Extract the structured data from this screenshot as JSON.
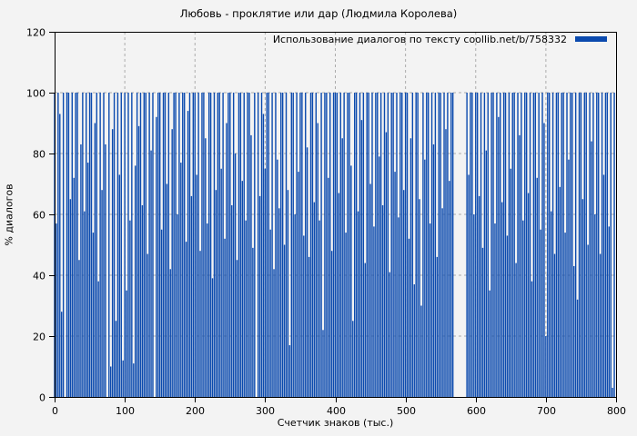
{
  "figure": {
    "background": "#f3f3f3"
  },
  "chart_data": {
    "type": "bar",
    "title": "Любовь - проклятие или дар (Людмила Королева)",
    "xlabel": "Счетчик знаков (тыс.)",
    "ylabel": "% диалогов",
    "legend_label": "Использование диалогов по тексту coollib.net/b/758332",
    "legend_position": "top-right-inside",
    "xlim": [
      0,
      800
    ],
    "ylim": [
      0,
      120
    ],
    "x_ticks": [
      0,
      100,
      200,
      300,
      400,
      500,
      600,
      700,
      800
    ],
    "y_ticks": [
      0,
      20,
      40,
      60,
      80,
      100,
      120
    ],
    "grid": "dashed",
    "grid_color": "#ababab",
    "bar_color": "#0b4aae",
    "frame_color": "#000000",
    "note": "dense impulse plot; zero values = visible gaps (largest gap at x≈570-586)",
    "series": [
      {
        "name": "Использование диалогов",
        "x_start": 0,
        "x_step": 2.5,
        "values": [
          100,
          57,
          100,
          93,
          28,
          100,
          0,
          100,
          100,
          65,
          100,
          72,
          100,
          100,
          45,
          83,
          100,
          61,
          100,
          77,
          100,
          100,
          54,
          90,
          100,
          38,
          100,
          68,
          100,
          83,
          0,
          100,
          10,
          88,
          100,
          25,
          100,
          73,
          100,
          12,
          100,
          35,
          100,
          58,
          100,
          11,
          76,
          100,
          89,
          100,
          63,
          100,
          100,
          47,
          100,
          81,
          100,
          0,
          92,
          100,
          100,
          55,
          100,
          100,
          70,
          100,
          42,
          88,
          100,
          100,
          60,
          100,
          77,
          100,
          100,
          51,
          94,
          100,
          66,
          100,
          100,
          73,
          100,
          48,
          100,
          100,
          85,
          57,
          100,
          100,
          39,
          100,
          68,
          100,
          100,
          75,
          100,
          52,
          90,
          100,
          100,
          63,
          100,
          80,
          45,
          100,
          100,
          71,
          100,
          58,
          100,
          100,
          86,
          49,
          100,
          0,
          100,
          66,
          100,
          93,
          75,
          100,
          100,
          55,
          100,
          42,
          100,
          78,
          62,
          100,
          100,
          50,
          100,
          68,
          17,
          100,
          100,
          60,
          100,
          74,
          100,
          100,
          53,
          100,
          82,
          46,
          100,
          100,
          64,
          100,
          90,
          58,
          100,
          22,
          100,
          100,
          72,
          100,
          48,
          100,
          100,
          100,
          67,
          100,
          85,
          100,
          54,
          100,
          100,
          76,
          25,
          100,
          100,
          61,
          100,
          91,
          100,
          44,
          100,
          100,
          70,
          100,
          56,
          100,
          100,
          79,
          100,
          63,
          100,
          87,
          100,
          41,
          100,
          100,
          74,
          100,
          59,
          100,
          100,
          68,
          100,
          100,
          52,
          85,
          100,
          37,
          100,
          100,
          65,
          30,
          100,
          78,
          100,
          100,
          57,
          100,
          83,
          100,
          46,
          100,
          100,
          62,
          100,
          88,
          100,
          71,
          100,
          100,
          0,
          0,
          0,
          0,
          0,
          0,
          0,
          100,
          73,
          100,
          100,
          60,
          100,
          100,
          66,
          100,
          49,
          100,
          81,
          100,
          35,
          100,
          100,
          57,
          100,
          92,
          100,
          64,
          100,
          100,
          53,
          100,
          75,
          100,
          100,
          44,
          100,
          86,
          100,
          58,
          100,
          100,
          67,
          100,
          38,
          100,
          100,
          72,
          100,
          55,
          100,
          90,
          20,
          100,
          100,
          61,
          100,
          47,
          100,
          100,
          69,
          100,
          100,
          54,
          100,
          78,
          100,
          100,
          43,
          100,
          32,
          100,
          100,
          65,
          100,
          100,
          50,
          100,
          84,
          100,
          60,
          100,
          100,
          47,
          100,
          73,
          100,
          100,
          56,
          100,
          3,
          100
        ]
      }
    ]
  }
}
